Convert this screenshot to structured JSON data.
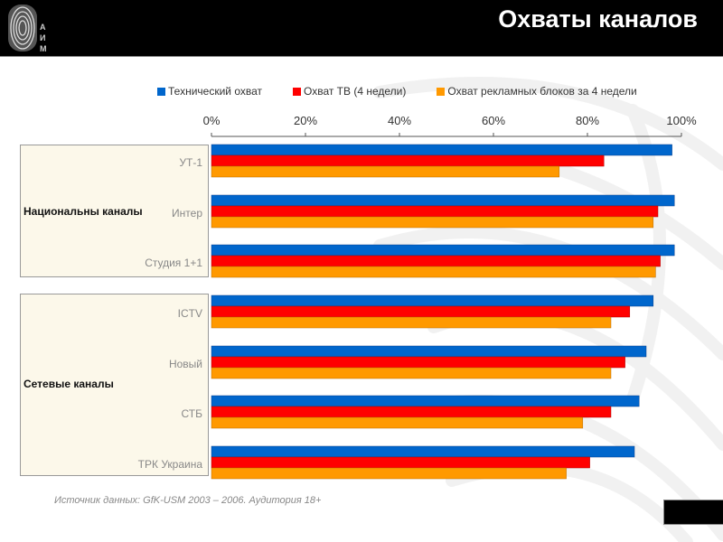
{
  "header": {
    "title": "Охваты каналов",
    "logo_letters": [
      "А",
      "И",
      "М"
    ]
  },
  "source_note": "Источник данных: GfK-USM 2003 – 2006. Аудитория 18+",
  "chart_data": {
    "type": "bar",
    "orientation": "horizontal",
    "title": "Охваты каналов",
    "xlim": [
      0,
      100
    ],
    "x_ticks": [
      "0%",
      "20%",
      "40%",
      "60%",
      "80%",
      "100%"
    ],
    "x_tick_values": [
      0,
      20,
      40,
      60,
      80,
      100
    ],
    "axis_position": "top",
    "legend_position": "top",
    "groups": [
      {
        "label": "Национальны каналы",
        "categories": [
          "УТ-1",
          "Интер",
          "Студия 1+1"
        ]
      },
      {
        "label": "Сетевые каналы",
        "categories": [
          "ICTV",
          "Новый",
          "СТБ",
          "ТРК Украина"
        ]
      }
    ],
    "categories": [
      "УТ-1",
      "Интер",
      "Студия 1+1",
      "ICTV",
      "Новый",
      "СТБ",
      "ТРК Украина"
    ],
    "series": [
      {
        "name": "Технический охват",
        "color": "#0066cc",
        "values": [
          98,
          98.5,
          98.5,
          94,
          92.5,
          91,
          90
        ]
      },
      {
        "name": "Охват ТВ (4 недели)",
        "color": "#ff0000",
        "values": [
          83.5,
          95,
          95.5,
          89,
          88,
          85,
          80.5
        ]
      },
      {
        "name": "Охват рекламных блоков за 4 недели",
        "color": "#ff9900",
        "values": [
          74,
          94,
          94.5,
          85,
          85,
          79,
          75.5
        ]
      }
    ]
  }
}
